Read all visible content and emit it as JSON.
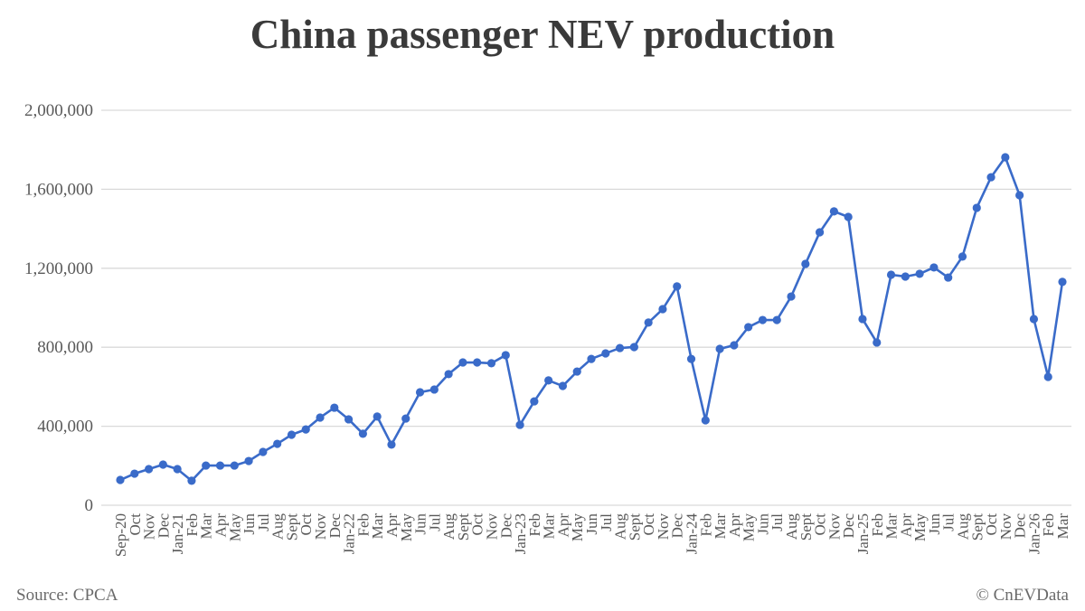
{
  "chart_data": {
    "type": "line",
    "title": "China passenger NEV production",
    "xlabel": "",
    "ylabel": "",
    "ylim": [
      0,
      2000000
    ],
    "yticks": [
      0,
      400000,
      800000,
      1200000,
      1600000,
      2000000
    ],
    "ytick_labels": [
      "0",
      "400,000",
      "800,000",
      "1,200,000",
      "1,600,000",
      "2,000,000"
    ],
    "grid": true,
    "categories": [
      "Sep-20",
      "Oct",
      "Nov",
      "Dec",
      "Jan-21",
      "Feb",
      "Mar",
      "Apr",
      "May",
      "Jun",
      "Jul",
      "Aug",
      "Sept",
      "Oct",
      "Nov",
      "Dec",
      "Jan-22",
      "Feb",
      "Mar",
      "Apr",
      "May",
      "Jun",
      "Jul",
      "Aug",
      "Sept",
      "Oct",
      "Nov",
      "Dec",
      "Jan-23",
      "Feb",
      "Mar",
      "Apr",
      "May",
      "Jun",
      "Jul",
      "Aug",
      "Sept",
      "Oct",
      "Nov",
      "Dec",
      "Jan-24",
      "Feb",
      "Mar",
      "Apr",
      "May",
      "Jun",
      "Jul",
      "Aug",
      "Sept",
      "Oct",
      "Nov",
      "Dec",
      "Jan-25",
      "Feb",
      "Mar",
      "Apr",
      "May",
      "Jun",
      "Jul",
      "Aug",
      "Sept",
      "Oct",
      "Nov",
      "Dec",
      "Jan-26",
      "Feb",
      "Mar"
    ],
    "series": [
      {
        "name": "Passenger NEV production",
        "color": "#3a6bc9",
        "values": [
          128000,
          160000,
          183000,
          206000,
          183000,
          124000,
          201000,
          201000,
          201000,
          224000,
          270000,
          311000,
          357000,
          384000,
          444000,
          494000,
          435000,
          362000,
          449000,
          307000,
          439000,
          572000,
          586000,
          664000,
          723000,
          723000,
          719000,
          760000,
          407000,
          526000,
          632000,
          604000,
          677000,
          741000,
          769000,
          796000,
          801000,
          925000,
          993000,
          1108000,
          741000,
          430000,
          792000,
          810000,
          902000,
          938000,
          938000,
          1057000,
          1222000,
          1382000,
          1488000,
          1460000,
          943000,
          824000,
          1167000,
          1158000,
          1172000,
          1204000,
          1153000,
          1259000,
          1506000,
          1661000,
          1762000,
          1570000,
          943000,
          650000,
          1131000
        ]
      }
    ]
  },
  "footer": {
    "source": "Source: CPCA",
    "copyright": "© CnEVData"
  }
}
